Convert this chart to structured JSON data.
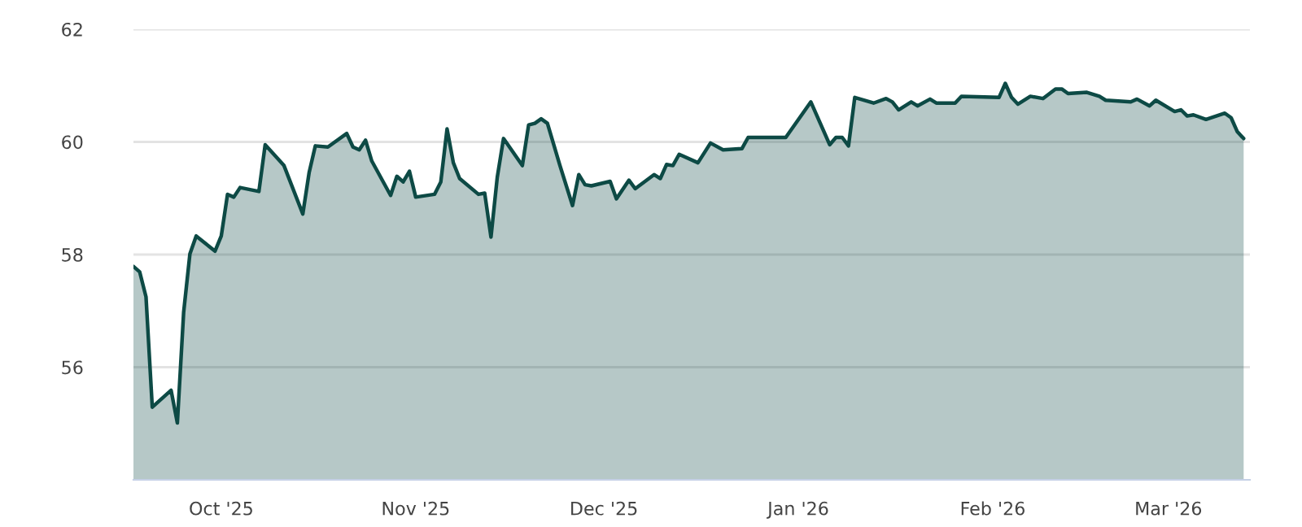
{
  "chart_data": {
    "type": "area",
    "x": [
      "2025-09-17",
      "2025-09-18",
      "2025-09-19",
      "2025-09-20",
      "2025-09-23",
      "2025-09-24",
      "2025-09-25",
      "2025-09-26",
      "2025-09-27",
      "2025-09-30",
      "2025-10-01",
      "2025-10-02",
      "2025-10-03",
      "2025-10-04",
      "2025-10-07",
      "2025-10-08",
      "2025-10-11",
      "2025-10-14",
      "2025-10-15",
      "2025-10-16",
      "2025-10-18",
      "2025-10-21",
      "2025-10-22",
      "2025-10-23",
      "2025-10-24",
      "2025-10-25",
      "2025-10-28",
      "2025-10-29",
      "2025-10-30",
      "2025-10-31",
      "2025-11-01",
      "2025-11-04",
      "2025-11-05",
      "2025-11-06",
      "2025-11-07",
      "2025-11-08",
      "2025-11-11",
      "2025-11-12",
      "2025-11-13",
      "2025-11-14",
      "2025-11-15",
      "2025-11-18",
      "2025-11-19",
      "2025-11-20",
      "2025-11-21",
      "2025-11-22",
      "2025-11-24",
      "2025-11-26",
      "2025-11-27",
      "2025-11-28",
      "2025-11-29",
      "2025-12-02",
      "2025-12-03",
      "2025-12-05",
      "2025-12-06",
      "2025-12-09",
      "2025-12-10",
      "2025-12-11",
      "2025-12-12",
      "2025-12-13",
      "2025-12-16",
      "2025-12-18",
      "2025-12-20",
      "2025-12-23",
      "2025-12-24",
      "2025-12-30",
      "2026-01-03",
      "2026-01-06",
      "2026-01-07",
      "2026-01-08",
      "2026-01-09",
      "2026-01-10",
      "2026-01-13",
      "2026-01-15",
      "2026-01-16",
      "2026-01-17",
      "2026-01-19",
      "2026-01-20",
      "2026-01-22",
      "2026-01-23",
      "2026-01-26",
      "2026-01-27",
      "2026-02-02",
      "2026-02-03",
      "2026-02-04",
      "2026-02-05",
      "2026-02-07",
      "2026-02-09",
      "2026-02-11",
      "2026-02-12",
      "2026-02-13",
      "2026-02-16",
      "2026-02-18",
      "2026-02-19",
      "2026-02-23",
      "2026-02-24",
      "2026-02-26",
      "2026-02-27",
      "2026-03-02",
      "2026-03-03",
      "2026-03-04",
      "2026-03-05",
      "2026-03-07",
      "2026-03-10",
      "2026-03-11",
      "2026-03-12",
      "2026-03-13"
    ],
    "series": [
      {
        "color": "#0d4a45",
        "values": [
          57.79,
          57.69,
          57.25,
          55.29,
          55.59,
          55.01,
          56.97,
          58.01,
          58.33,
          58.06,
          58.33,
          59.07,
          59.02,
          59.19,
          59.12,
          59.95,
          59.58,
          58.72,
          59.45,
          59.93,
          59.91,
          60.15,
          59.91,
          59.86,
          60.03,
          59.66,
          59.05,
          59.39,
          59.29,
          59.48,
          59.02,
          59.07,
          59.29,
          60.23,
          59.63,
          59.35,
          59.07,
          59.09,
          58.31,
          59.37,
          60.06,
          59.58,
          60.3,
          60.33,
          60.41,
          60.33,
          59.58,
          58.87,
          59.42,
          59.24,
          59.22,
          59.3,
          58.99,
          59.32,
          59.17,
          59.42,
          59.35,
          59.6,
          59.58,
          59.78,
          59.63,
          59.98,
          59.86,
          59.88,
          60.08,
          60.08,
          60.71,
          59.95,
          60.08,
          60.08,
          59.93,
          60.79,
          60.69,
          60.77,
          60.71,
          60.57,
          60.71,
          60.64,
          60.76,
          60.69,
          60.69,
          60.81,
          60.79,
          61.04,
          60.79,
          60.67,
          60.81,
          60.77,
          60.94,
          60.94,
          60.86,
          60.88,
          60.81,
          60.74,
          60.71,
          60.76,
          60.64,
          60.74,
          60.54,
          60.57,
          60.46,
          60.48,
          60.4,
          60.51,
          60.43,
          60.18,
          60.06
        ]
      }
    ],
    "xlim": [
      "2025-09-17",
      "2026-03-14"
    ],
    "xticks": [
      {
        "value": "2025-10-01",
        "label": "Oct '25"
      },
      {
        "value": "2025-11-01",
        "label": "Nov '25"
      },
      {
        "value": "2025-12-01",
        "label": "Dec '25"
      },
      {
        "value": "2026-01-01",
        "label": "Jan '26"
      },
      {
        "value": "2026-02-01",
        "label": "Feb '26"
      },
      {
        "value": "2026-03-01",
        "label": "Mar '26"
      }
    ],
    "ylim": [
      54,
      62
    ],
    "yticks": [
      56,
      58,
      60,
      62
    ],
    "grid": "y"
  }
}
